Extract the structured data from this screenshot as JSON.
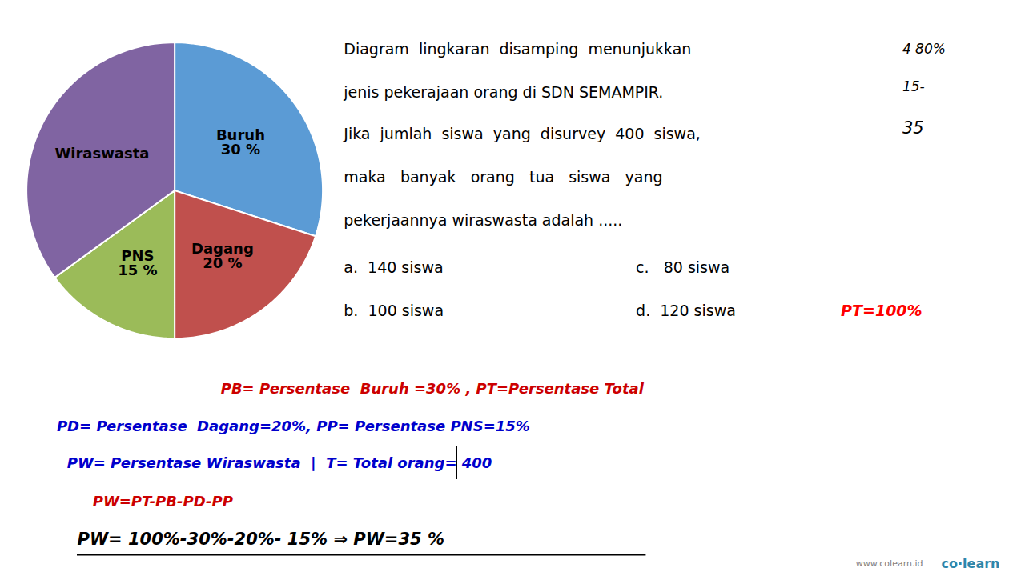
{
  "chart_data": {
    "type": "pie",
    "categories": [
      "Buruh",
      "Dagang",
      "PNS",
      "Wiraswasta"
    ],
    "values": [
      30,
      20,
      15,
      35
    ],
    "value_labels": [
      "30 %",
      "20 %",
      "15 %",
      null
    ],
    "colors": [
      "#5B9BD5",
      "#C0504D",
      "#9BBB59",
      "#8064A2"
    ],
    "data_labels": true,
    "annotations": [
      {
        "text": "Diagram  lingkaran  disamping  menunjukkan",
        "color": "black"
      },
      {
        "text": "jenis pekerajaan orang di SDN SEMAMPIR.",
        "color": "black"
      },
      {
        "text": "Jika  jumlah  siswa  yang  disurvey  400  siswa,",
        "color": "black"
      },
      {
        "text": "maka   banyak   orang   tua   siswa   yang",
        "color": "black"
      },
      {
        "text": "pekerjaannya wiraswasta adalah .....",
        "color": "black"
      },
      {
        "text": "a.  140 siswa",
        "color": "black"
      },
      {
        "text": "c.   80 siswa",
        "color": "black"
      },
      {
        "text": "b.  100 siswa",
        "color": "black"
      },
      {
        "text": "d.  120 siswa",
        "color": "black"
      },
      {
        "text": "PT=100%",
        "color": "red"
      },
      {
        "text": "4 80%",
        "color": "black"
      },
      {
        "text": "15-",
        "color": "black"
      },
      {
        "text": "35",
        "color": "black"
      },
      {
        "text": "PB= Persentase  Buruh =30% , PT=Persentase Total",
        "color": "#CC0000"
      },
      {
        "text": "PD= Persentase  Dagang=20%, PP= Persentase PNS=15%",
        "color": "#0000CC"
      },
      {
        "text": "PW= Persentase Wiraswasta  |  T= Total orang= 400",
        "color": "#0000CC"
      },
      {
        "text": "PW=PT-PB-PD-PP",
        "color": "#CC0000"
      },
      {
        "text": "PW= 100%-30%-20%- 15% ⇒ PW=35 %",
        "color": "black"
      },
      {
        "text": "co·learn",
        "color": "#2E86AB"
      },
      {
        "text": "www.colearn.id",
        "color": "gray"
      }
    ]
  }
}
